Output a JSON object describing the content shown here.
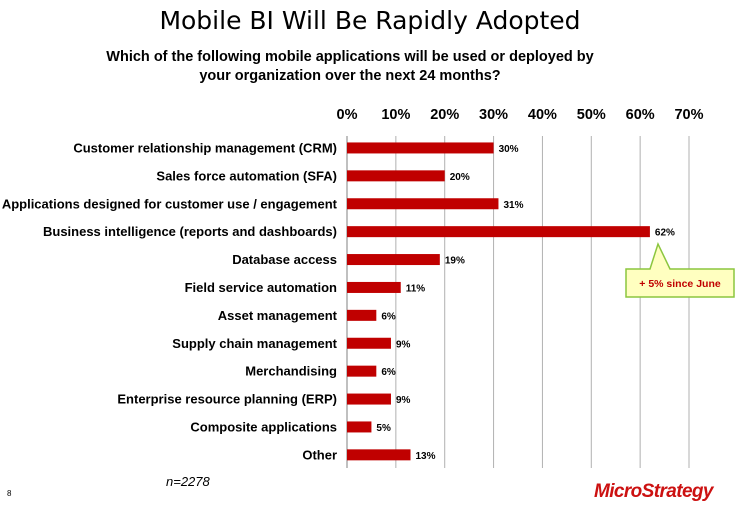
{
  "page": {
    "title": "Mobile BI Will Be Rapidly Adopted",
    "subtitle_line1": "Which of the following mobile applications will be used or deployed by",
    "subtitle_line2": "your organization over the next 24 months?",
    "sample_size": "n=2278",
    "page_number": "8",
    "logo_text": "MicroStrategy"
  },
  "colors": {
    "bar": "#c00000",
    "grid": "#b0b0b0",
    "callout_fill": "#ffffc0",
    "callout_border": "#8cc63f",
    "callout_text": "#c00000"
  },
  "chart_data": {
    "type": "bar",
    "orientation": "horizontal",
    "title": "Mobile BI Will Be Rapidly Adopted",
    "subtitle": "Which of the following mobile applications will be used or deployed by your organization over the next 24 months?",
    "categories": [
      "Customer relationship management (CRM)",
      "Sales force automation (SFA)",
      "Applications designed for customer use / engagement",
      "Business intelligence (reports and dashboards)",
      "Database access",
      "Field service automation",
      "Asset management",
      "Supply chain management",
      "Merchandising",
      "Enterprise resource planning (ERP)",
      "Composite applications",
      "Other"
    ],
    "values": [
      30,
      20,
      31,
      62,
      19,
      11,
      6,
      9,
      6,
      9,
      5,
      13
    ],
    "value_labels": [
      "30%",
      "20%",
      "31%",
      "62%",
      "19%",
      "11%",
      "6%",
      "9%",
      "6%",
      "9%",
      "5%",
      "13%"
    ],
    "xlim": [
      0,
      70
    ],
    "x_ticks": [
      0,
      10,
      20,
      30,
      40,
      50,
      60,
      70
    ],
    "x_tick_labels": [
      "0%",
      "10%",
      "20%",
      "30%",
      "40%",
      "50%",
      "60%",
      "70%"
    ],
    "axis_position": "top",
    "grid": true,
    "xlabel": "",
    "ylabel": "",
    "annotations": [
      {
        "text": "+ 5% since June",
        "target_category": "Business intelligence (reports and dashboards)"
      }
    ]
  }
}
